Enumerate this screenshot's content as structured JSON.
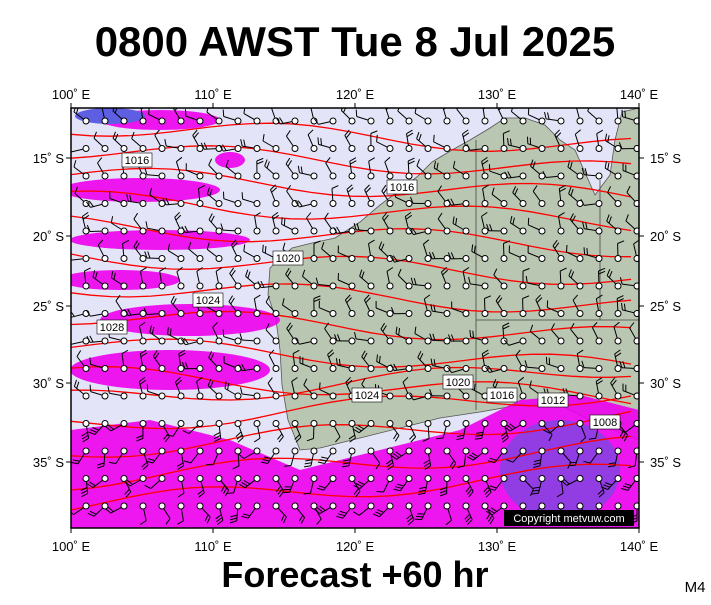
{
  "title": "0800 AWST Tue 8 Jul 2025",
  "footer": "Forecast +60 hr",
  "model": "M4",
  "copyright": "Copyright metvuw.com",
  "lon_labels": [
    "100˚ E",
    "110˚ E",
    "120˚ E",
    "130˚ E",
    "140˚ E"
  ],
  "lat_labels": [
    "15˚ S",
    "20˚ S",
    "25˚ S",
    "30˚ S",
    "35˚ S"
  ],
  "isobar_labels": [
    1016,
    1016,
    1020,
    1024,
    1028,
    1024,
    1020,
    1016,
    1012,
    1008
  ]
}
